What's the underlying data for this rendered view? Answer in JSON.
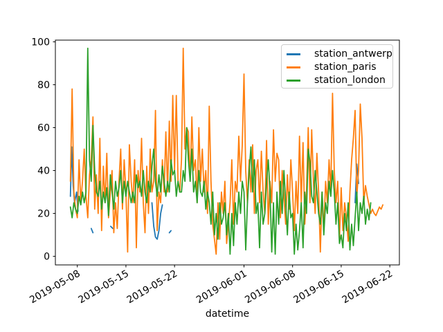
{
  "figure": {
    "background": "#ffffff",
    "spine_color": "#000000",
    "tick_color": "#000000"
  },
  "chart_data": {
    "type": "line",
    "title": "",
    "xlabel": "datetime",
    "ylabel": "",
    "grid": false,
    "legend": {
      "position": "upper right",
      "entries": [
        "station_antwerp",
        "station_paris",
        "station_london"
      ]
    },
    "x_axis": {
      "unit": "days since 2019-05-07 00:00",
      "lim": [
        -2.16,
        47.38
      ],
      "tick_values": [
        1,
        8,
        15,
        25,
        32,
        39,
        46
      ],
      "tick_labels": [
        "2019-05-08",
        "2019-05-15",
        "2019-05-22",
        "2019-06-01",
        "2019-06-08",
        "2019-06-15",
        "2019-06-22"
      ],
      "label_rotation_deg": 30
    },
    "y_axis": {
      "lim": [
        -4,
        100.8
      ],
      "tick_values": [
        0,
        20,
        40,
        60,
        80,
        100
      ],
      "tick_labels": [
        "0",
        "20",
        "40",
        "60",
        "80",
        "100"
      ]
    },
    "series": [
      {
        "name": "station_antwerp",
        "color": "#1f77b4",
        "style": "segments",
        "segments": [
          [
            [
              0.0,
              28
            ],
            [
              0.2,
              51
            ],
            [
              0.4,
              33
            ],
            [
              0.6,
              25
            ],
            [
              0.9,
              30
            ],
            [
              1.1,
              21
            ]
          ],
          [
            [
              3.0,
              13
            ],
            [
              3.25,
              11
            ]
          ],
          [
            [
              5.8,
              14
            ],
            [
              6.1,
              13
            ]
          ],
          [
            [
              11.75,
              25
            ],
            [
              12.0,
              14
            ],
            [
              12.25,
              9
            ],
            [
              12.5,
              8
            ],
            [
              12.75,
              12
            ],
            [
              13.0,
              20
            ],
            [
              13.25,
              24
            ]
          ],
          [
            [
              14.25,
              11
            ],
            [
              14.5,
              12
            ]
          ],
          [
            [
              41.0,
              25
            ],
            [
              41.25,
              43
            ],
            [
              41.5,
              34
            ]
          ]
        ]
      },
      {
        "name": "station_paris",
        "color": "#ff7f0e",
        "style": "sampled",
        "t0": 0,
        "dt": 0.25,
        "values": [
          35,
          78,
          30,
          22,
          18,
          45,
          25,
          35,
          50,
          28,
          18,
          38,
          45,
          65,
          22,
          38,
          20,
          55,
          12,
          42,
          25,
          48,
          18,
          30,
          40,
          11,
          25,
          13,
          35,
          50,
          22,
          45,
          30,
          2,
          52,
          35,
          25,
          45,
          4,
          40,
          30,
          55,
          25,
          11,
          42,
          20,
          50,
          30,
          35,
          68,
          12,
          30,
          25,
          45,
          30,
          58,
          30,
          63,
          35,
          75,
          40,
          75,
          35,
          30,
          45,
          97,
          50,
          60,
          58,
          35,
          65,
          40,
          45,
          25,
          60,
          35,
          50,
          30,
          40,
          20,
          70,
          35,
          15,
          8,
          1,
          25,
          8,
          30,
          20,
          35,
          6,
          15,
          25,
          45,
          15,
          35,
          30,
          56,
          35,
          52,
          85,
          40,
          25,
          45,
          30,
          52,
          20,
          40,
          45,
          25,
          49,
          30,
          20,
          54,
          15,
          35,
          25,
          59,
          35,
          48,
          45,
          18,
          40,
          28,
          15,
          38,
          22,
          45,
          30,
          12,
          35,
          20,
          56,
          25,
          53,
          15,
          30,
          60,
          25,
          59,
          35,
          20,
          48,
          30,
          2,
          30,
          12,
          35,
          25,
          45,
          30,
          76,
          40,
          25,
          35,
          8,
          32,
          12,
          25,
          18,
          7,
          30,
          45,
          55,
          68,
          28,
          40,
          71,
          55,
          25,
          33,
          28,
          24,
          20,
          22,
          20,
          19,
          21,
          23,
          22,
          24
        ]
      },
      {
        "name": "station_london",
        "color": "#2ca02c",
        "style": "sampled",
        "t0": 0,
        "dt": 0.25,
        "values": [
          23,
          18,
          25,
          22,
          20,
          28,
          24,
          30,
          25,
          30,
          97,
          45,
          35,
          61,
          40,
          30,
          28,
          35,
          22,
          30,
          25,
          32,
          19,
          38,
          30,
          22,
          35,
          28,
          32,
          40,
          25,
          35,
          28,
          35,
          30,
          25,
          30,
          25,
          38,
          32,
          35,
          28,
          40,
          30,
          25,
          35,
          30,
          42,
          50,
          35,
          28,
          38,
          30,
          42,
          35,
          28,
          35,
          30,
          45,
          38,
          40,
          28,
          35,
          30,
          30,
          40,
          35,
          60,
          45,
          35,
          50,
          30,
          35,
          25,
          40,
          30,
          28,
          35,
          22,
          30,
          25,
          15,
          30,
          10,
          20,
          8,
          25,
          15,
          18,
          25,
          10,
          20,
          1,
          20,
          5,
          25,
          15,
          30,
          20,
          35,
          30,
          3,
          25,
          40,
          51,
          30,
          45,
          20,
          25,
          4,
          30,
          15,
          20,
          35,
          45,
          30,
          2,
          25,
          1,
          30,
          15,
          35,
          20,
          40,
          25,
          10,
          30,
          18,
          20,
          1,
          15,
          3,
          12,
          25,
          4,
          30,
          20,
          50,
          44,
          28,
          25,
          40,
          30,
          20,
          15,
          30,
          10,
          25,
          20,
          35,
          28,
          40,
          30,
          15,
          25,
          6,
          10,
          4,
          20,
          12,
          25,
          3,
          15,
          5,
          18,
          30,
          12,
          25,
          20,
          28,
          15,
          22,
          17,
          25
        ]
      }
    ]
  }
}
